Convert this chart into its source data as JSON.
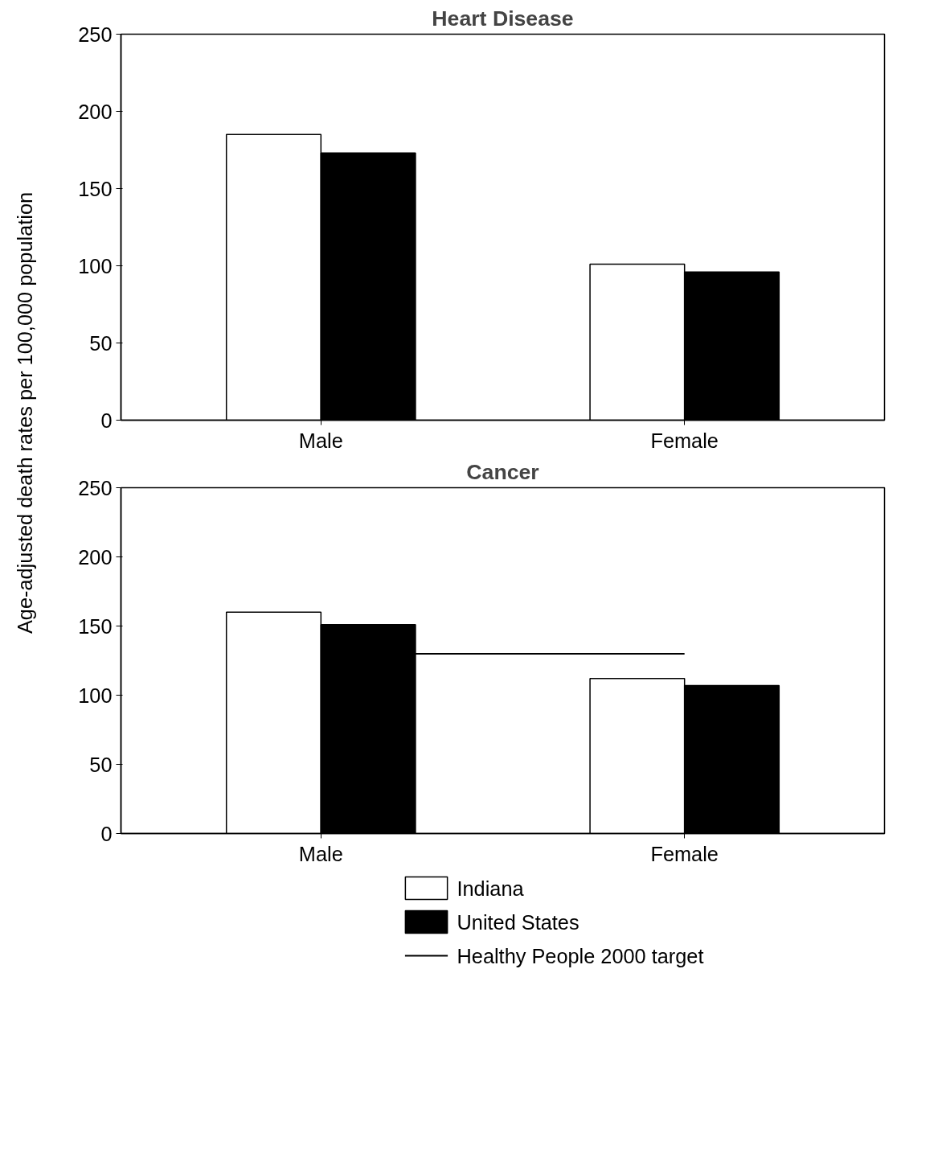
{
  "chart_data": [
    {
      "type": "bar",
      "title": "Heart Disease",
      "ylabel": "Age-adjusted death rates per 100,000 population",
      "categories": [
        "Male",
        "Female"
      ],
      "series": [
        {
          "color": "#ffffff",
          "values": [
            185,
            101
          ]
        },
        {
          "color": "#000000",
          "values": [
            173,
            96
          ]
        }
      ],
      "ylim": [
        0,
        250
      ],
      "yticks": [
        0,
        50,
        100,
        150,
        200,
        250
      ],
      "grid": false,
      "legend": false
    },
    {
      "type": "bar",
      "title": "Cancer",
      "categories": [
        "Male",
        "Female"
      ],
      "series": [
        {
          "name": "Indiana",
          "color": "#ffffff",
          "values": [
            160,
            112
          ]
        },
        {
          "name": "United States",
          "color": "#000000",
          "values": [
            151,
            107
          ]
        }
      ],
      "ref_lines": [
        {
          "axis": "y",
          "value": 130,
          "label": "Healthy People 2000 target",
          "color": "#000000"
        }
      ],
      "ylim": [
        0,
        250
      ],
      "yticks": [
        0,
        50,
        100,
        150,
        200,
        250
      ],
      "grid": false,
      "legend": "bottom"
    }
  ]
}
